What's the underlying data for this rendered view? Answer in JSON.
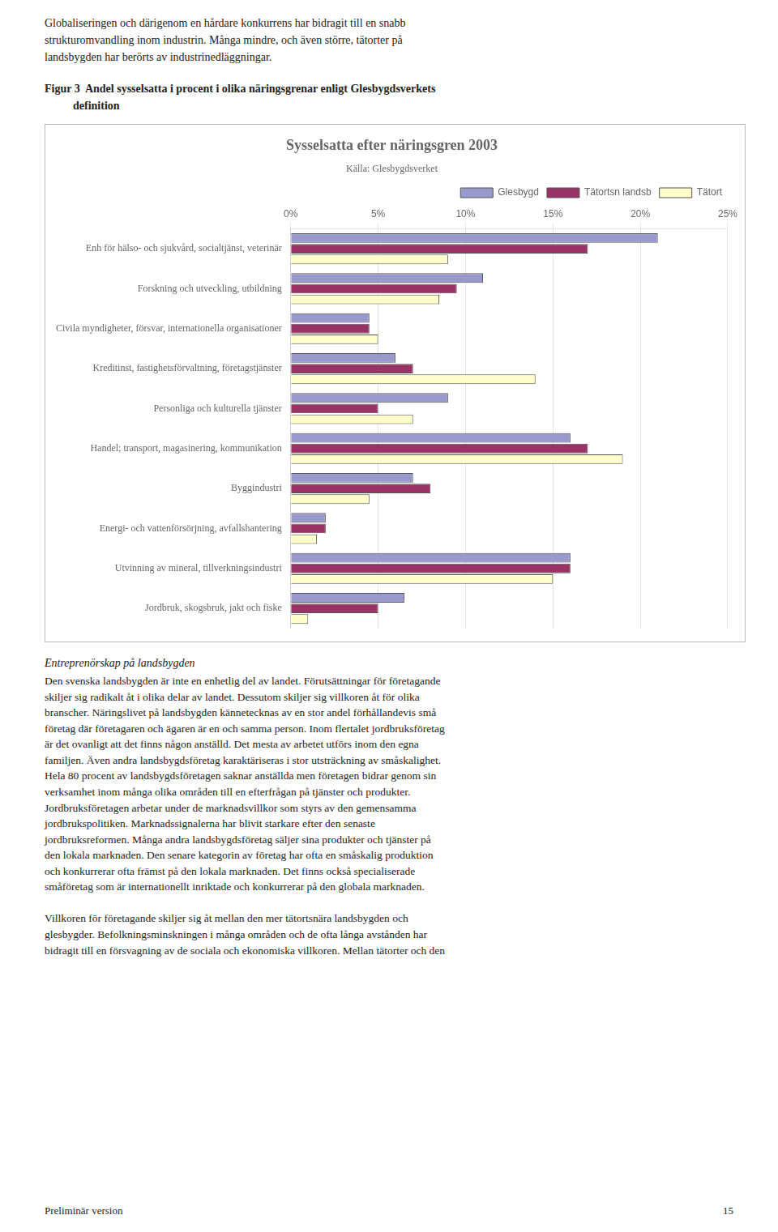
{
  "header_text": "Globaliseringen och därigenom en hårdare konkurrens har bidragit till en snabb\nstrukturomvandling inom industrin. Många mindre, och även större, tätorter på\nlandsbygden har berörts av industrinedläggningar.",
  "caption": "Figur 3  Andel sysselsatta i procent i olika näringsgrenar enligt Glesbygdsverkets\n          definition",
  "body_heading": "Entreprenörskap på landsbygden",
  "body_text": "Den svenska landsbygden är inte en enhetlig del av landet. Förutsättningar för företagande\nskiljer sig radikalt åt i olika delar av landet. Dessutom skiljer sig villkoren åt för olika\nbranscher. Näringslivet på landsbygden kännetecknas av en stor andel förhållandevis små\nföretag där företagaren och ägaren är en och samma person. Inom flertalet jordbruksföretag\när det ovanligt att det finns någon anställd. Det mesta av arbetet utförs inom den egna\nfamiljen. Även andra landsbygdsföretag karaktäriseras i stor utsträckning av småskalighet.\nHela 80 procent av landsbygdsföretagen saknar anställda men företagen bidrar genom sin\nverksamhet inom många olika områden till en efterfrågan på tjänster och produkter.\nJordbruksföretagen arbetar under de marknadsvillkor som styrs av den gemensamma\njordbrukspolitiken. Marknadssignalerna har blivit starkare efter den senaste\njordbruksreformen. Många andra landsbygdsföretag säljer sina produkter och tjänster på\nden lokala marknaden. Den senare kategorin av företag har ofta en småskalig produktion\noch konkurrerar ofta främst på den lokala marknaden. Det finns också specialiserade\nsmåföretag som är internationellt inriktade och konkurrerar på den globala marknaden.\n\nVillkoren för företagande skiljer sig åt mellan den mer tätortsnära landsbygden och\nglesbygder. Befolkningsminskningen i många områden och de ofta långa avstånden har\nbidragit till en försvagning av de sociala och ekonomiska villkoren. Mellan tätorter och den",
  "footer_left": "Preliminär version",
  "footer_right": "15",
  "chart_data": {
    "type": "bar",
    "orientation": "horizontal",
    "title": "Sysselsatta efter näringsgren 2003",
    "subtitle": "Källa: Glesbygdsverket",
    "categories": [
      "Jordbruk, skogsbruk, jakt och fiske",
      "Utvinning av mineral, tillverkningsindustri",
      "Energi- och vattenförsörjning, avfallshantering",
      "Byggindustri",
      "Handel; transport, magasinering, kommunikation",
      "Personliga och kulturella tjänster",
      "Kreditinst, fastighetsförvaltning, företagstjänster",
      "Civila myndigheter, försvar, internationella organisationer",
      "Forskning och utveckling, utbildning",
      "Enh för hälso- och sjukvård, socialtjänst, veterinär"
    ],
    "series": [
      {
        "name": "Glesbygd",
        "color": "#9999CC",
        "values": [
          6.5,
          16.0,
          2.0,
          7.0,
          16.0,
          9.0,
          6.0,
          4.5,
          11.0,
          21.0
        ]
      },
      {
        "name": "Tätortsn landsb",
        "color": "#993366",
        "values": [
          5.0,
          16.0,
          2.0,
          8.0,
          17.0,
          5.0,
          7.0,
          4.5,
          9.5,
          17.0
        ]
      },
      {
        "name": "Tätort",
        "color": "#FFFFCC",
        "values": [
          1.0,
          15.0,
          1.5,
          4.5,
          19.0,
          7.0,
          14.0,
          5.0,
          8.5,
          9.0
        ]
      }
    ],
    "xlim": [
      0,
      25
    ],
    "xticks": [
      {
        "value": 0,
        "label": "0%"
      },
      {
        "value": 5,
        "label": "5%"
      },
      {
        "value": 10,
        "label": "10%"
      },
      {
        "value": 15,
        "label": "15%"
      },
      {
        "value": 20,
        "label": "20%"
      },
      {
        "value": 25,
        "label": "25%"
      }
    ],
    "grid": true,
    "legend": "upper right"
  }
}
